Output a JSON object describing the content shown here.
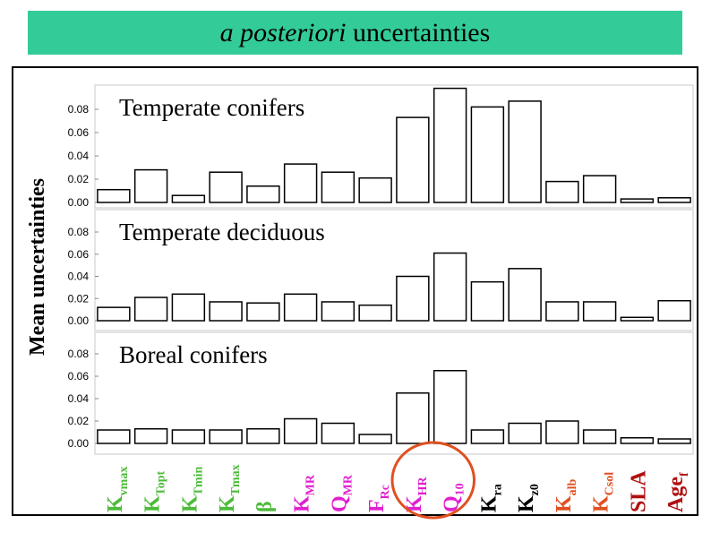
{
  "title": {
    "italic": "a posteriori",
    "rest": " uncertainties"
  },
  "chart_data": {
    "type": "bar",
    "ylabel": "Mean uncertainties",
    "yticks": [
      "0.08",
      "0.06",
      "0.04",
      "0.02",
      "0.00"
    ],
    "ylim": [
      0,
      0.1
    ],
    "categories": [
      {
        "main": "K",
        "sub": "vmax",
        "color": "#4dbb3a"
      },
      {
        "main": "K",
        "sub": "Topt",
        "color": "#4dbb3a"
      },
      {
        "main": "K",
        "sub": "Tmin",
        "color": "#4dbb3a"
      },
      {
        "main": "K",
        "sub": "Tmax",
        "color": "#4dbb3a"
      },
      {
        "main": "β",
        "sub": "",
        "color": "#4dbb3a"
      },
      {
        "main": "K",
        "sub": "MR",
        "color": "#e020d0"
      },
      {
        "main": "Q",
        "sub": "MR",
        "color": "#e020d0"
      },
      {
        "main": "F",
        "sub": "Rc",
        "color": "#e020d0"
      },
      {
        "main": "K",
        "sub": "HR",
        "color": "#e020d0"
      },
      {
        "main": "Q",
        "sub": "10",
        "color": "#e020d0"
      },
      {
        "main": "K",
        "sub": "ra",
        "color": "#000000"
      },
      {
        "main": "K",
        "sub": "z0",
        "color": "#000000"
      },
      {
        "main": "K",
        "sub": "alb",
        "color": "#e05020"
      },
      {
        "main": "K",
        "sub": "Csol",
        "color": "#e05020"
      },
      {
        "main": "SLA",
        "sub": "",
        "color": "#b01010"
      },
      {
        "main": "Age",
        "sub": "f",
        "color": "#b01010"
      }
    ],
    "panels": [
      {
        "name": "Temperate conifers",
        "values": [
          0.011,
          0.028,
          0.006,
          0.026,
          0.014,
          0.033,
          0.026,
          0.021,
          0.073,
          0.098,
          0.082,
          0.087,
          0.018,
          0.023,
          0.003,
          0.004
        ]
      },
      {
        "name": "Temperate deciduous",
        "values": [
          0.012,
          0.021,
          0.024,
          0.017,
          0.016,
          0.024,
          0.017,
          0.014,
          0.04,
          0.061,
          0.035,
          0.047,
          0.017,
          0.017,
          0.003,
          0.018
        ]
      },
      {
        "name": "Boreal conifers",
        "values": [
          0.012,
          0.013,
          0.012,
          0.012,
          0.013,
          0.022,
          0.018,
          0.008,
          0.045,
          0.065,
          0.012,
          0.018,
          0.02,
          0.012,
          0.005,
          0.004
        ]
      }
    ],
    "highlight": {
      "categories": [
        8,
        9
      ],
      "shape": "ellipse",
      "color": "#e05020"
    }
  }
}
